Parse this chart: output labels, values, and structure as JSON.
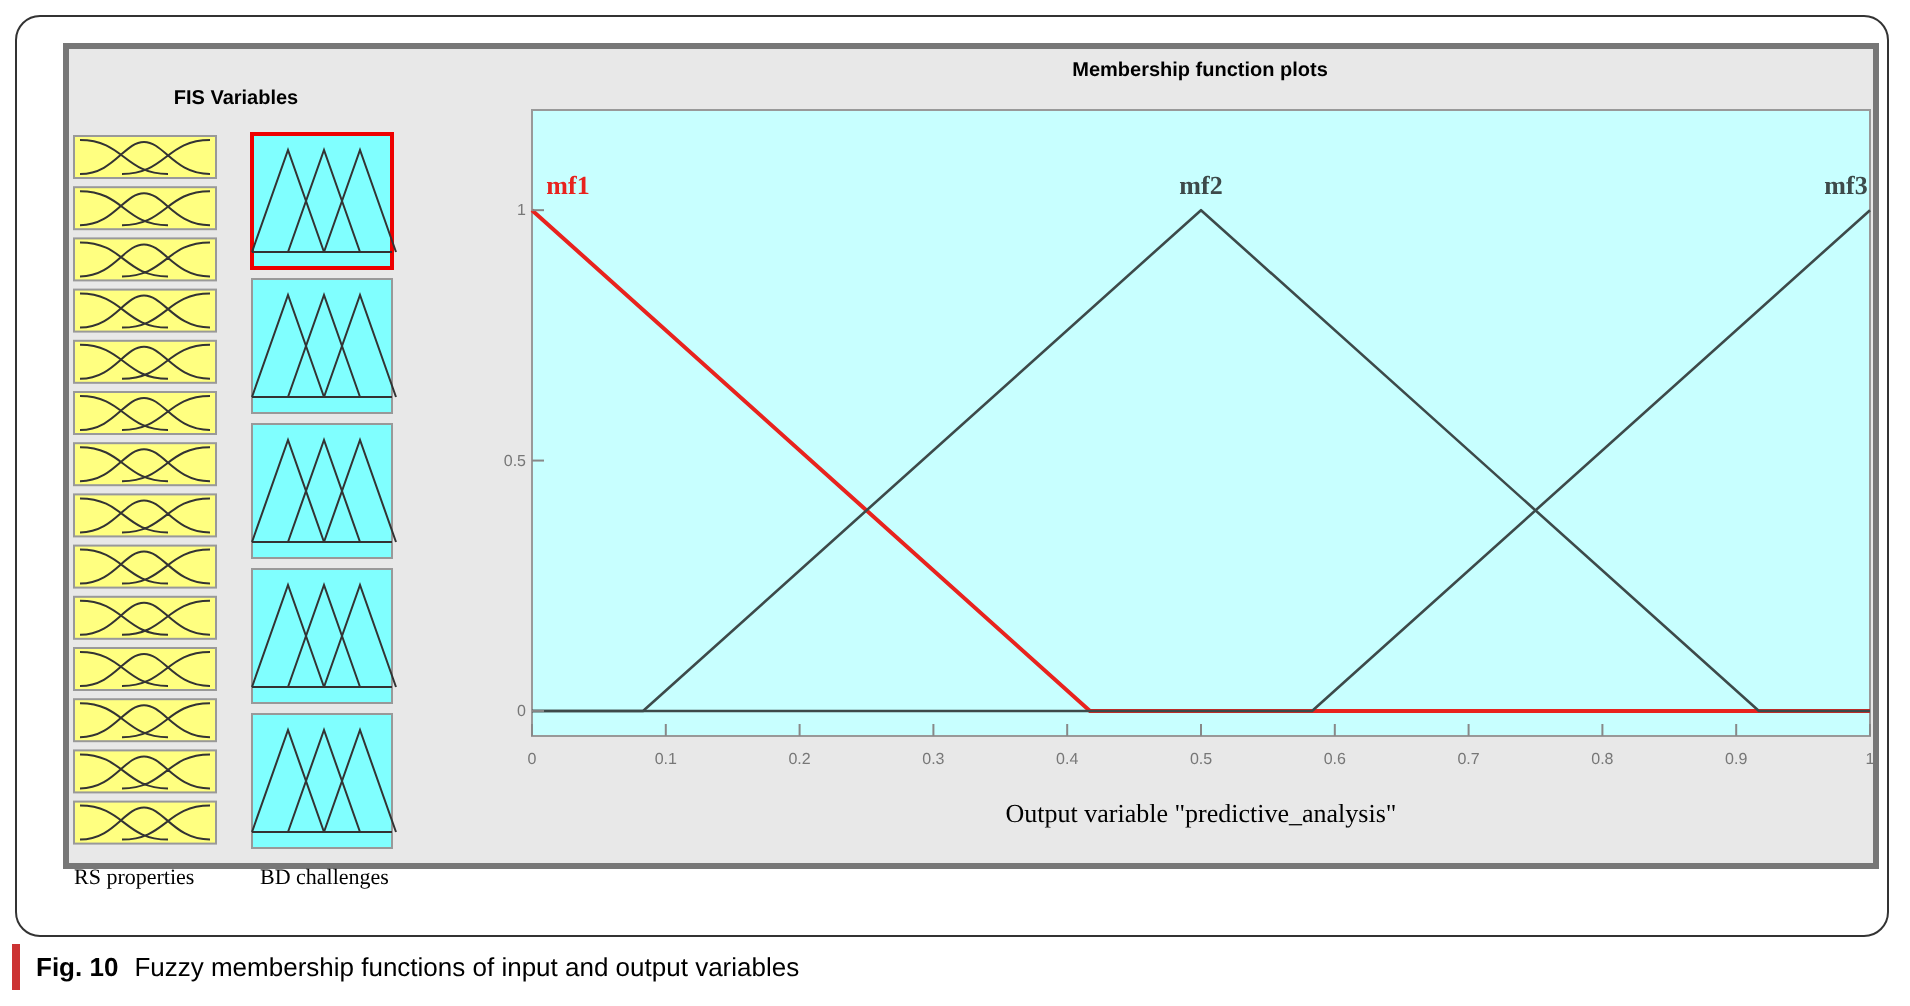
{
  "chart_data": {
    "type": "line",
    "title": "Membership function plots",
    "xlabel": "Output variable \"predictive_analysis\"",
    "annotations": [
      "FIS Variables",
      "RS properties",
      "BD challenges",
      "Fig. 10",
      "Fuzzy membership functions of input and output variables"
    ],
    "xlim": [
      0,
      1
    ],
    "ylim": [
      -0.05,
      1.2
    ],
    "xticks": [
      0,
      0.1,
      0.2,
      0.3,
      0.4,
      0.5,
      0.6,
      0.7,
      0.8,
      0.9,
      1
    ],
    "yticks": [
      0,
      0.5,
      1
    ],
    "grid": false,
    "marker": "none",
    "line_style": "solid",
    "series": [
      {
        "name": "mf1",
        "color": "#e8231e",
        "x": [
          0,
          0.417,
          1
        ],
        "values": [
          1,
          0,
          0
        ]
      },
      {
        "name": "mf2",
        "color": "#3d4a4a",
        "x": [
          0,
          0.083,
          0.5,
          0.917,
          1
        ],
        "values": [
          0,
          0,
          1,
          0,
          0
        ]
      },
      {
        "name": "mf3",
        "color": "#3d4a4a",
        "x": [
          0,
          0.583,
          1
        ],
        "values": [
          0,
          0,
          1
        ]
      }
    ]
  }
}
